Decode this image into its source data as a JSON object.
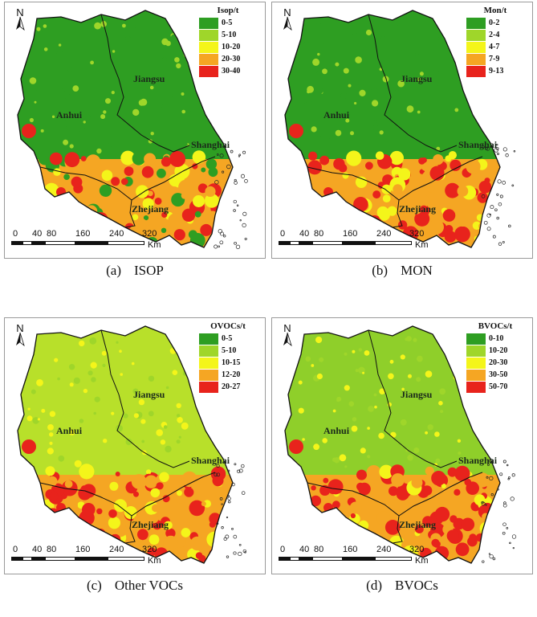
{
  "north_label": "N",
  "scale": {
    "ticks": [
      "0",
      "40",
      "80",
      "160",
      "240",
      "320"
    ],
    "unit": "Km"
  },
  "region_names": {
    "anhui": "Anhui",
    "jiangsu": "Jiangsu",
    "shanghai": "Shanghai",
    "zhejiang": "Zhejiang"
  },
  "colors": {
    "dark_green": "#2e9e22",
    "light_green": "#9fd62a",
    "yellow": "#f4f51a",
    "orange": "#f5a623",
    "red": "#e8231c"
  },
  "panels": [
    {
      "id": "a",
      "letter": "(a)",
      "caption": "ISOP",
      "legend_title": "Isop/t",
      "legend": [
        "0-5",
        "5-10",
        "10-20",
        "20-30",
        "30-40"
      ],
      "legend_colors": [
        "#2e9e22",
        "#9fd62a",
        "#f4f51a",
        "#f5a623",
        "#e8231c"
      ],
      "north_color": "#2e9e22",
      "south_mix": [
        "#e8231c",
        "#f5a623",
        "#f4f51a",
        "#2e9e22"
      ]
    },
    {
      "id": "b",
      "letter": "(b)",
      "caption": "MON",
      "legend_title": "Mon/t",
      "legend": [
        "0-2",
        "2-4",
        "4-7",
        "7-9",
        "9-13"
      ],
      "legend_colors": [
        "#2e9e22",
        "#9fd62a",
        "#f4f51a",
        "#f5a623",
        "#e8231c"
      ],
      "north_color": "#2e9e22",
      "south_mix": [
        "#e8231c",
        "#f5a623",
        "#e8231c",
        "#f4f51a"
      ]
    },
    {
      "id": "c",
      "letter": "(c)",
      "caption": "Other VOCs",
      "legend_title": "OVOCs/t",
      "legend": [
        "0-5",
        "5-10",
        "10-15",
        "12-20",
        "20-27"
      ],
      "legend_colors": [
        "#2e9e22",
        "#9fd62a",
        "#f4f51a",
        "#f5a623",
        "#e8231c"
      ],
      "north_color": "#b8e02a",
      "south_mix": [
        "#e8231c",
        "#f5a623",
        "#e8231c",
        "#f4f51a"
      ]
    },
    {
      "id": "d",
      "letter": "(d)",
      "caption": "BVOCs",
      "legend_title": "BVOCs/t",
      "legend": [
        "0-10",
        "10-20",
        "20-30",
        "30-50",
        "50-70"
      ],
      "legend_colors": [
        "#2e9e22",
        "#9fd62a",
        "#f4f51a",
        "#f5a623",
        "#e8231c"
      ],
      "north_color": "#8fcf2a",
      "south_mix": [
        "#e8231c",
        "#f5a623",
        "#f4f51a",
        "#e8231c"
      ]
    }
  ]
}
